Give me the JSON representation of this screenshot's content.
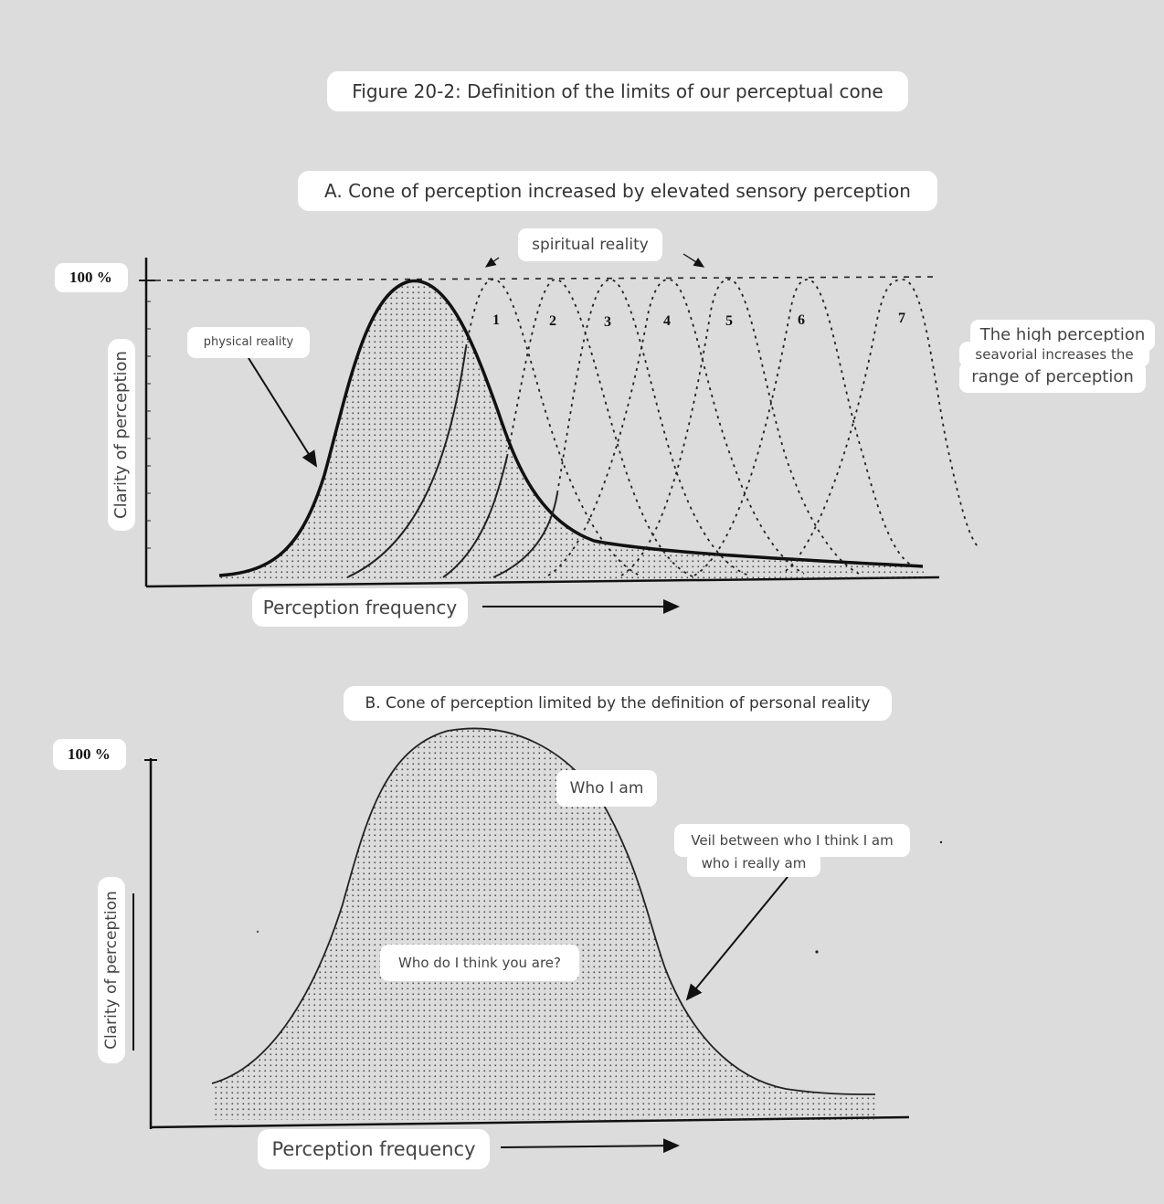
{
  "figure_title": "Figure 20-2: Definition of the limits of our perceptual cone",
  "panel_a": {
    "title": "A. Cone of perception increased by elevated sensory perception",
    "y_top_label": "100 %",
    "y_axis_label": "Clarity of perception",
    "x_axis_label": "Perception frequency",
    "spiritual_label": "spiritual reality",
    "physical_label": "physical reality",
    "curve_numbers": [
      "1",
      "2",
      "3",
      "4",
      "5",
      "6",
      "7"
    ],
    "side_note": {
      "line1": "The high perception",
      "line2": "seavorial increases the",
      "line3": "range of perception"
    }
  },
  "panel_b": {
    "title": "B. Cone of perception limited by the definition of personal reality",
    "y_top_label": "100 %",
    "y_axis_label": "Clarity of perception",
    "x_axis_label": "Perception frequency",
    "who_i_am": "Who I am",
    "veil_line1": "Veil between who I think I am",
    "veil_line2": "who i really am",
    "inner_label": "Who do I think you are?"
  }
}
